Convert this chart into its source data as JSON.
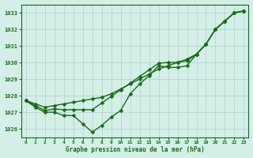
{
  "title": "Graphe pression niveau de la mer (hPa)",
  "xlabel_hours": [
    0,
    1,
    2,
    3,
    4,
    5,
    6,
    7,
    8,
    9,
    10,
    11,
    12,
    13,
    14,
    15,
    16,
    17,
    18,
    19,
    20,
    21,
    22,
    23
  ],
  "series1": [
    1027.7,
    1027.3,
    1027.0,
    1027.0,
    1026.8,
    1026.8,
    1026.3,
    1025.8,
    1026.2,
    1026.7,
    1027.1,
    1028.1,
    1028.7,
    1029.2,
    1029.8,
    1029.7,
    1029.7,
    1029.8,
    1030.5,
    1031.1,
    1032.0,
    1032.5,
    1033.0,
    1033.1
  ],
  "series2": [
    1027.7,
    1027.4,
    1027.1,
    1027.2,
    1027.15,
    1027.15,
    1027.15,
    1027.15,
    1027.55,
    1027.95,
    1028.35,
    1028.75,
    1029.15,
    1029.55,
    1029.95,
    1030.0,
    1030.0,
    1030.1,
    1030.5,
    1031.1,
    1032.0,
    1032.5,
    1033.0,
    1033.1
  ],
  "series3": [
    1027.7,
    1027.5,
    1027.3,
    1027.4,
    1027.5,
    1027.6,
    1027.7,
    1027.8,
    1027.9,
    1028.1,
    1028.4,
    1028.7,
    1029.0,
    1029.3,
    1029.6,
    1029.8,
    1030.0,
    1030.2,
    1030.5,
    1031.1,
    1032.0,
    1032.5,
    1033.0,
    1033.1
  ],
  "ylim": [
    1025.5,
    1033.5
  ],
  "yticks": [
    1026,
    1027,
    1028,
    1029,
    1030,
    1031,
    1032,
    1033
  ],
  "line_color": "#1a6b1a",
  "bg_color": "#d4eee8",
  "grid_color": "#b0d0cc",
  "title_color": "#1a6b1a",
  "tick_color": "#1a6b1a",
  "marker_size": 2.5,
  "linewidth": 1.0
}
